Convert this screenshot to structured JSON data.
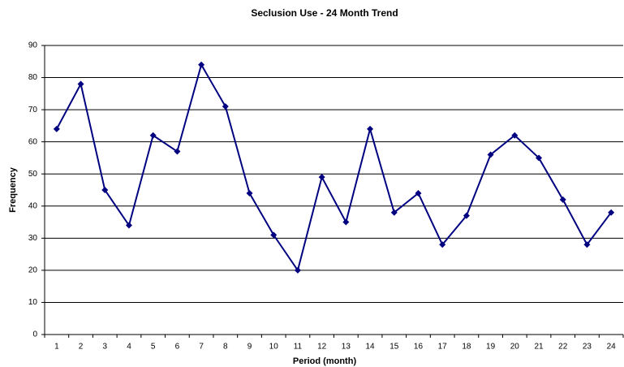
{
  "chart_data": {
    "type": "line",
    "title": "Seclusion Use - 24 Month Trend",
    "x_label": "Period (month)",
    "y_label": "Frequency",
    "categories": [
      "1",
      "2",
      "3",
      "4",
      "5",
      "6",
      "7",
      "8",
      "9",
      "10",
      "11",
      "12",
      "13",
      "14",
      "15",
      "16",
      "17",
      "18",
      "19",
      "20",
      "21",
      "22",
      "23",
      "24"
    ],
    "series": [
      {
        "name": "Frequency",
        "color": "#000080",
        "values": [
          64,
          78,
          45,
          34,
          62,
          57,
          84,
          71,
          44,
          31,
          20,
          49,
          35,
          64,
          38,
          44,
          28,
          37,
          56,
          62,
          55,
          42,
          28,
          38
        ]
      }
    ],
    "ylim": [
      0,
      90
    ],
    "yticks": [
      0,
      10,
      20,
      30,
      40,
      50,
      60,
      70,
      80,
      90
    ],
    "grid": true
  }
}
